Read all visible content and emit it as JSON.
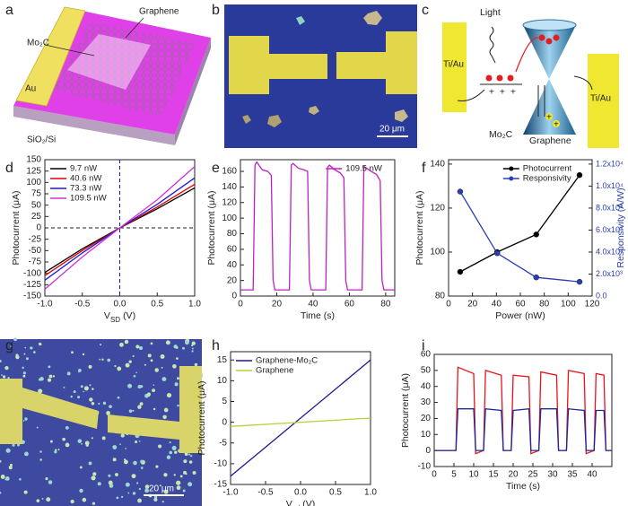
{
  "panel_labels": [
    "a",
    "b",
    "c",
    "d",
    "e",
    "f",
    "g",
    "h",
    "i"
  ],
  "schematic_a": {
    "mo2c": "Mo₂C",
    "graphene": "Graphene",
    "au": "Au",
    "substrate": "SiO₂/Si"
  },
  "micrograph_b": {
    "scale": "20 μm"
  },
  "diagram_c": {
    "light": "Light",
    "ti_au_left": "Ti/Au",
    "ti_au_right": "Ti/Au",
    "mo2c": "Mo₂C",
    "graphene": "Graphene",
    "plus": "+"
  },
  "micrograph_g": {
    "scale": "20 μm"
  },
  "chart_data": [
    {
      "type": "line",
      "x": [
        -1,
        -0.5,
        0,
        0.5,
        1
      ],
      "x_label": {
        "text": "V",
        "sub": "SD",
        "after": "(V)"
      },
      "y_label": "Photocurrent (μA)",
      "xlim": [
        -1,
        1
      ],
      "xticks": [
        {
          "value": -1,
          "label": "-1.0"
        },
        {
          "value": -0.5,
          "label": "-0.5"
        },
        {
          "value": 0,
          "label": "0.0"
        },
        {
          "value": 0.5,
          "label": "0.5"
        },
        {
          "value": 1,
          "label": "1.0"
        }
      ],
      "ylim": [
        -150,
        150
      ],
      "yticks": [
        -150,
        -125,
        -100,
        -75,
        -50,
        -25,
        0,
        25,
        50,
        75,
        100,
        125,
        150
      ],
      "zero_lines": true,
      "legend": "upper left",
      "series": [
        {
          "name": "9.7 nW",
          "color": "#000000",
          "values": [
            -98,
            -46,
            0,
            42,
            88
          ]
        },
        {
          "name": "40.6 nW",
          "color": "#e00000",
          "values": [
            -105,
            -50,
            0,
            46,
            96
          ]
        },
        {
          "name": "73.3 nW",
          "color": "#1a1adc",
          "values": [
            -115,
            -55,
            0,
            52,
            110
          ]
        },
        {
          "name": "109.5 nW",
          "color": "#d030d0",
          "values": [
            -135,
            -64,
            0,
            62,
            135
          ]
        }
      ]
    },
    {
      "type": "line",
      "x": [
        0,
        7,
        8,
        9,
        12,
        15,
        17,
        18,
        19,
        27,
        28,
        29,
        32,
        35,
        37,
        38,
        39,
        47,
        48,
        49,
        52,
        55,
        57,
        58,
        59,
        67,
        68,
        69,
        72,
        75,
        77,
        78,
        79,
        85
      ],
      "x_label": "Time (s)",
      "y_label": "Photocurrent (μA)",
      "xlim": [
        0,
        85
      ],
      "xticks": [
        0,
        20,
        40,
        60,
        80
      ],
      "ylim": [
        0,
        175
      ],
      "yticks": [
        0,
        20,
        40,
        60,
        80,
        100,
        120,
        140,
        160
      ],
      "legend": "upper right",
      "series": [
        {
          "name": "109.5 nW",
          "color": "#c020c0",
          "values": [
            8,
            8,
            168,
            172,
            162,
            160,
            155,
            20,
            8,
            8,
            168,
            170,
            164,
            162,
            160,
            20,
            8,
            8,
            165,
            168,
            162,
            158,
            152,
            20,
            8,
            8,
            166,
            165,
            160,
            156,
            148,
            20,
            8,
            8
          ]
        }
      ]
    },
    {
      "type": "line",
      "markers": true,
      "x": [
        9.7,
        40.6,
        73.3,
        109.5
      ],
      "x_label": "Power (nW)",
      "y_label": "Photocurrent (μA)",
      "y2_label": "Responsivity (A/W)",
      "xlim": [
        0,
        120
      ],
      "xticks": [
        0,
        20,
        40,
        60,
        80,
        100,
        120
      ],
      "ylim": [
        80,
        142
      ],
      "yticks": [
        80,
        100,
        120,
        140
      ],
      "y2lim": [
        0,
        12400
      ],
      "y2ticks": [
        {
          "value": 0,
          "label": "0.0"
        },
        {
          "value": 2000,
          "label": "2.0x10³"
        },
        {
          "value": 4000,
          "label": "4.0x10³"
        },
        {
          "value": 6000,
          "label": "6.0x10³"
        },
        {
          "value": 8000,
          "label": "8.0x10³"
        },
        {
          "value": 10000,
          "label": "1.0x10⁴"
        },
        {
          "value": 12000,
          "label": "1.2x10⁴"
        }
      ],
      "legend": "upper right",
      "series": [
        {
          "name": "Photocurrent",
          "color": "#000000",
          "values": [
            91,
            100,
            108,
            135
          ]
        },
        {
          "name": "Responsivity",
          "color": "#2a3fb0",
          "axis": "y2",
          "values": [
            9500,
            3900,
            1700,
            1300
          ]
        }
      ]
    },
    {
      "type": "line",
      "x": [
        -1,
        1
      ],
      "x_label": {
        "text": "V",
        "sub": "sd",
        "after": "(V)"
      },
      "y_label": "Photocurrent (μA)",
      "xlim": [
        -1,
        1
      ],
      "xticks": [
        {
          "value": -1,
          "label": "-1.0"
        },
        {
          "value": -0.5,
          "label": "-0.5"
        },
        {
          "value": 0,
          "label": "0.0"
        },
        {
          "value": 0.5,
          "label": "0.5"
        },
        {
          "value": 1,
          "label": "1.0"
        }
      ],
      "ylim": [
        -15,
        17
      ],
      "yticks": [
        -15,
        -10,
        -5,
        0,
        5,
        10,
        15
      ],
      "legend": "upper left",
      "series": [
        {
          "name": "Graphene-Mo₂C",
          "color": "#1a1a8c",
          "values": [
            -13,
            15
          ]
        },
        {
          "name": "Graphene",
          "color": "#b5d33c",
          "values": [
            -1,
            1
          ]
        }
      ]
    },
    {
      "type": "line",
      "x": [
        0,
        5.5,
        6,
        10,
        10.5,
        12.5,
        13,
        17,
        17.5,
        19.5,
        20,
        24,
        24.5,
        26.5,
        27,
        31,
        31.5,
        33.5,
        34,
        38,
        38.5,
        40.5,
        41,
        43,
        43.5,
        45
      ],
      "x_label": "Time (s)",
      "y_label": "Photocurrent (μA)",
      "xlim": [
        0,
        45
      ],
      "xticks": [
        0,
        5,
        10,
        15,
        20,
        25,
        30,
        35,
        40
      ],
      "ylim": [
        -10,
        60
      ],
      "yticks": [
        -10,
        0,
        10,
        20,
        30,
        40,
        50,
        60
      ],
      "series": [
        {
          "color": "#e8141c",
          "values": [
            0,
            0,
            52,
            48,
            -2,
            0,
            50,
            47,
            0,
            0,
            47,
            46,
            -2,
            0,
            49,
            47,
            0,
            0,
            50,
            48,
            -2,
            0,
            48,
            47,
            0,
            0
          ]
        },
        {
          "color": "#1b2a9c",
          "values": [
            0,
            0,
            26,
            26,
            0,
            0,
            26,
            25,
            0,
            0,
            25,
            26,
            0,
            0,
            26,
            26,
            0,
            0,
            26,
            25,
            0,
            0,
            25,
            25,
            0,
            0
          ]
        }
      ]
    }
  ]
}
